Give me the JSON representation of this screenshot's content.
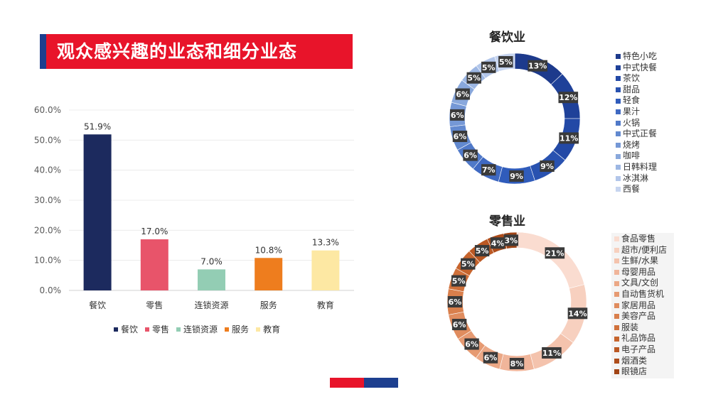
{
  "title": "观众感兴趣的业态和细分业态",
  "chart_data": [
    {
      "type": "bar",
      "categories": [
        "餐饮",
        "零售",
        "连锁资源",
        "服务",
        "教育"
      ],
      "values": [
        51.9,
        17.0,
        7.0,
        10.8,
        13.3
      ],
      "value_labels": [
        "51.9%",
        "17.0%",
        "7.0%",
        "10.8%",
        "13.3%"
      ],
      "colors": [
        "#1c2a5e",
        "#e8546a",
        "#93cdb4",
        "#ee7d1e",
        "#fde8a3"
      ],
      "ylim": [
        0,
        60
      ],
      "yticks": [
        "0.0%",
        "10.0%",
        "20.0%",
        "30.0%",
        "40.0%",
        "50.0%",
        "60.0%"
      ],
      "grid": true,
      "legend": [
        "餐饮",
        "零售",
        "连锁资源",
        "服务",
        "教育"
      ],
      "legend_position": "bottom"
    },
    {
      "type": "pie",
      "title": "餐饮业",
      "donut": true,
      "categories": [
        "特色小吃",
        "中式快餐",
        "茶饮",
        "甜品",
        "轻食",
        "果汁",
        "火锅",
        "中式正餐",
        "烧烤",
        "咖啡",
        "日韩料理",
        "冰淇淋",
        "西餐"
      ],
      "values": [
        13,
        12,
        11,
        9,
        9,
        7,
        6,
        6,
        6,
        6,
        5,
        5,
        5
      ],
      "labels": [
        "13%",
        "12%",
        "11%",
        "9%",
        "9%",
        "7%",
        "6%",
        "6%",
        "6%",
        "6%",
        "5%",
        "5%",
        "5%"
      ],
      "colors": [
        "#1d3a8c",
        "#1f4199",
        "#2349a6",
        "#2952b0",
        "#305cbb",
        "#3f69c2",
        "#5079c8",
        "#6289cf",
        "#7598d6",
        "#89a8dc",
        "#9db7e3",
        "#b2c6ea",
        "#c7d5f0"
      ],
      "legend_position": "right"
    },
    {
      "type": "pie",
      "title": "零售业",
      "donut": true,
      "categories": [
        "食品零售",
        "超市/便利店",
        "生鲜/水果",
        "母婴用品",
        "文具/文创",
        "自动售货机",
        "家居用品",
        "美容产品",
        "服装",
        "礼品饰品",
        "电子产品",
        "烟酒类",
        "眼镜店"
      ],
      "values": [
        21,
        14,
        11,
        8,
        6,
        6,
        6,
        6,
        5,
        5,
        5,
        4,
        3
      ],
      "labels": [
        "21%",
        "14%",
        "11%",
        "8%",
        "6%",
        "6%",
        "6%",
        "6%",
        "5%",
        "5%",
        "5%",
        "4%",
        "3%"
      ],
      "colors": [
        "#fadcd0",
        "#f7d0bf",
        "#f4c3ad",
        "#f0b59a",
        "#eba886",
        "#e69a72",
        "#e08c5e",
        "#d97f4c",
        "#d0713b",
        "#c6642d",
        "#bb5823",
        "#ae4d1b",
        "#a14415"
      ],
      "legend_position": "right"
    }
  ]
}
